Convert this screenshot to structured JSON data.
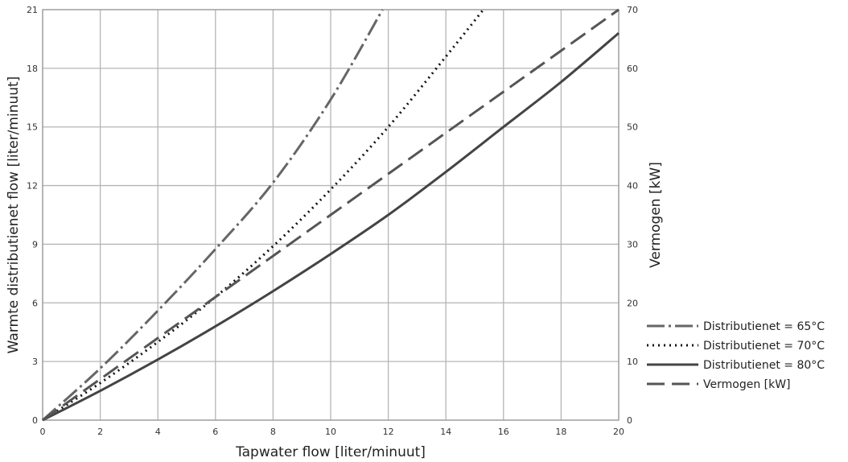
{
  "chart_data": {
    "type": "line",
    "xlabel": "Tapwater flow [liter/minuut]",
    "ylabel": "Warmte distributienet flow [liter/minuut]",
    "y2label": "Vermogen [kW]",
    "xlim": [
      0,
      20
    ],
    "ylim": [
      0,
      21
    ],
    "y2lim": [
      0,
      70
    ],
    "x_ticks": [
      "0",
      "2",
      "4",
      "6",
      "8",
      "10",
      "12",
      "14",
      "16",
      "18",
      "20"
    ],
    "y_ticks": [
      "0",
      "3",
      "6",
      "9",
      "12",
      "15",
      "18",
      "21"
    ],
    "y2_ticks": [
      "0",
      "10",
      "20",
      "30",
      "40",
      "50",
      "60",
      "70"
    ],
    "grid": true,
    "legend_position": "right",
    "series": [
      {
        "name": "Distributienet = 65°C",
        "axis": "left",
        "style": "dash-dot",
        "color": "#666666",
        "x": [
          0,
          2,
          4,
          6,
          8,
          10,
          11.8
        ],
        "y": [
          0,
          2.65,
          5.6,
          8.75,
          12.15,
          16.4,
          21
        ]
      },
      {
        "name": "Distributienet = 70°C",
        "axis": "left",
        "style": "dotted",
        "color": "#111111",
        "x": [
          0,
          2,
          4,
          6,
          8,
          10,
          12,
          14,
          15.3
        ],
        "y": [
          0,
          1.9,
          4.0,
          6.3,
          8.9,
          11.8,
          15.0,
          18.6,
          21
        ]
      },
      {
        "name": "Distributienet = 80°C",
        "axis": "left",
        "style": "solid",
        "color": "#444444",
        "x": [
          0,
          2,
          4,
          6,
          8,
          10,
          12,
          14,
          16,
          18,
          20
        ],
        "y": [
          0,
          1.5,
          3.1,
          4.8,
          6.6,
          8.5,
          10.5,
          12.7,
          15.0,
          17.3,
          19.8
        ]
      },
      {
        "name": "Vermogen [kW]",
        "axis": "right",
        "style": "dashed",
        "color": "#555555",
        "x": [
          0,
          2,
          4,
          6,
          8,
          10,
          12,
          14,
          16,
          18,
          20
        ],
        "y": [
          0,
          7,
          14,
          21,
          28,
          35,
          42,
          49,
          56,
          63,
          70
        ]
      }
    ]
  }
}
